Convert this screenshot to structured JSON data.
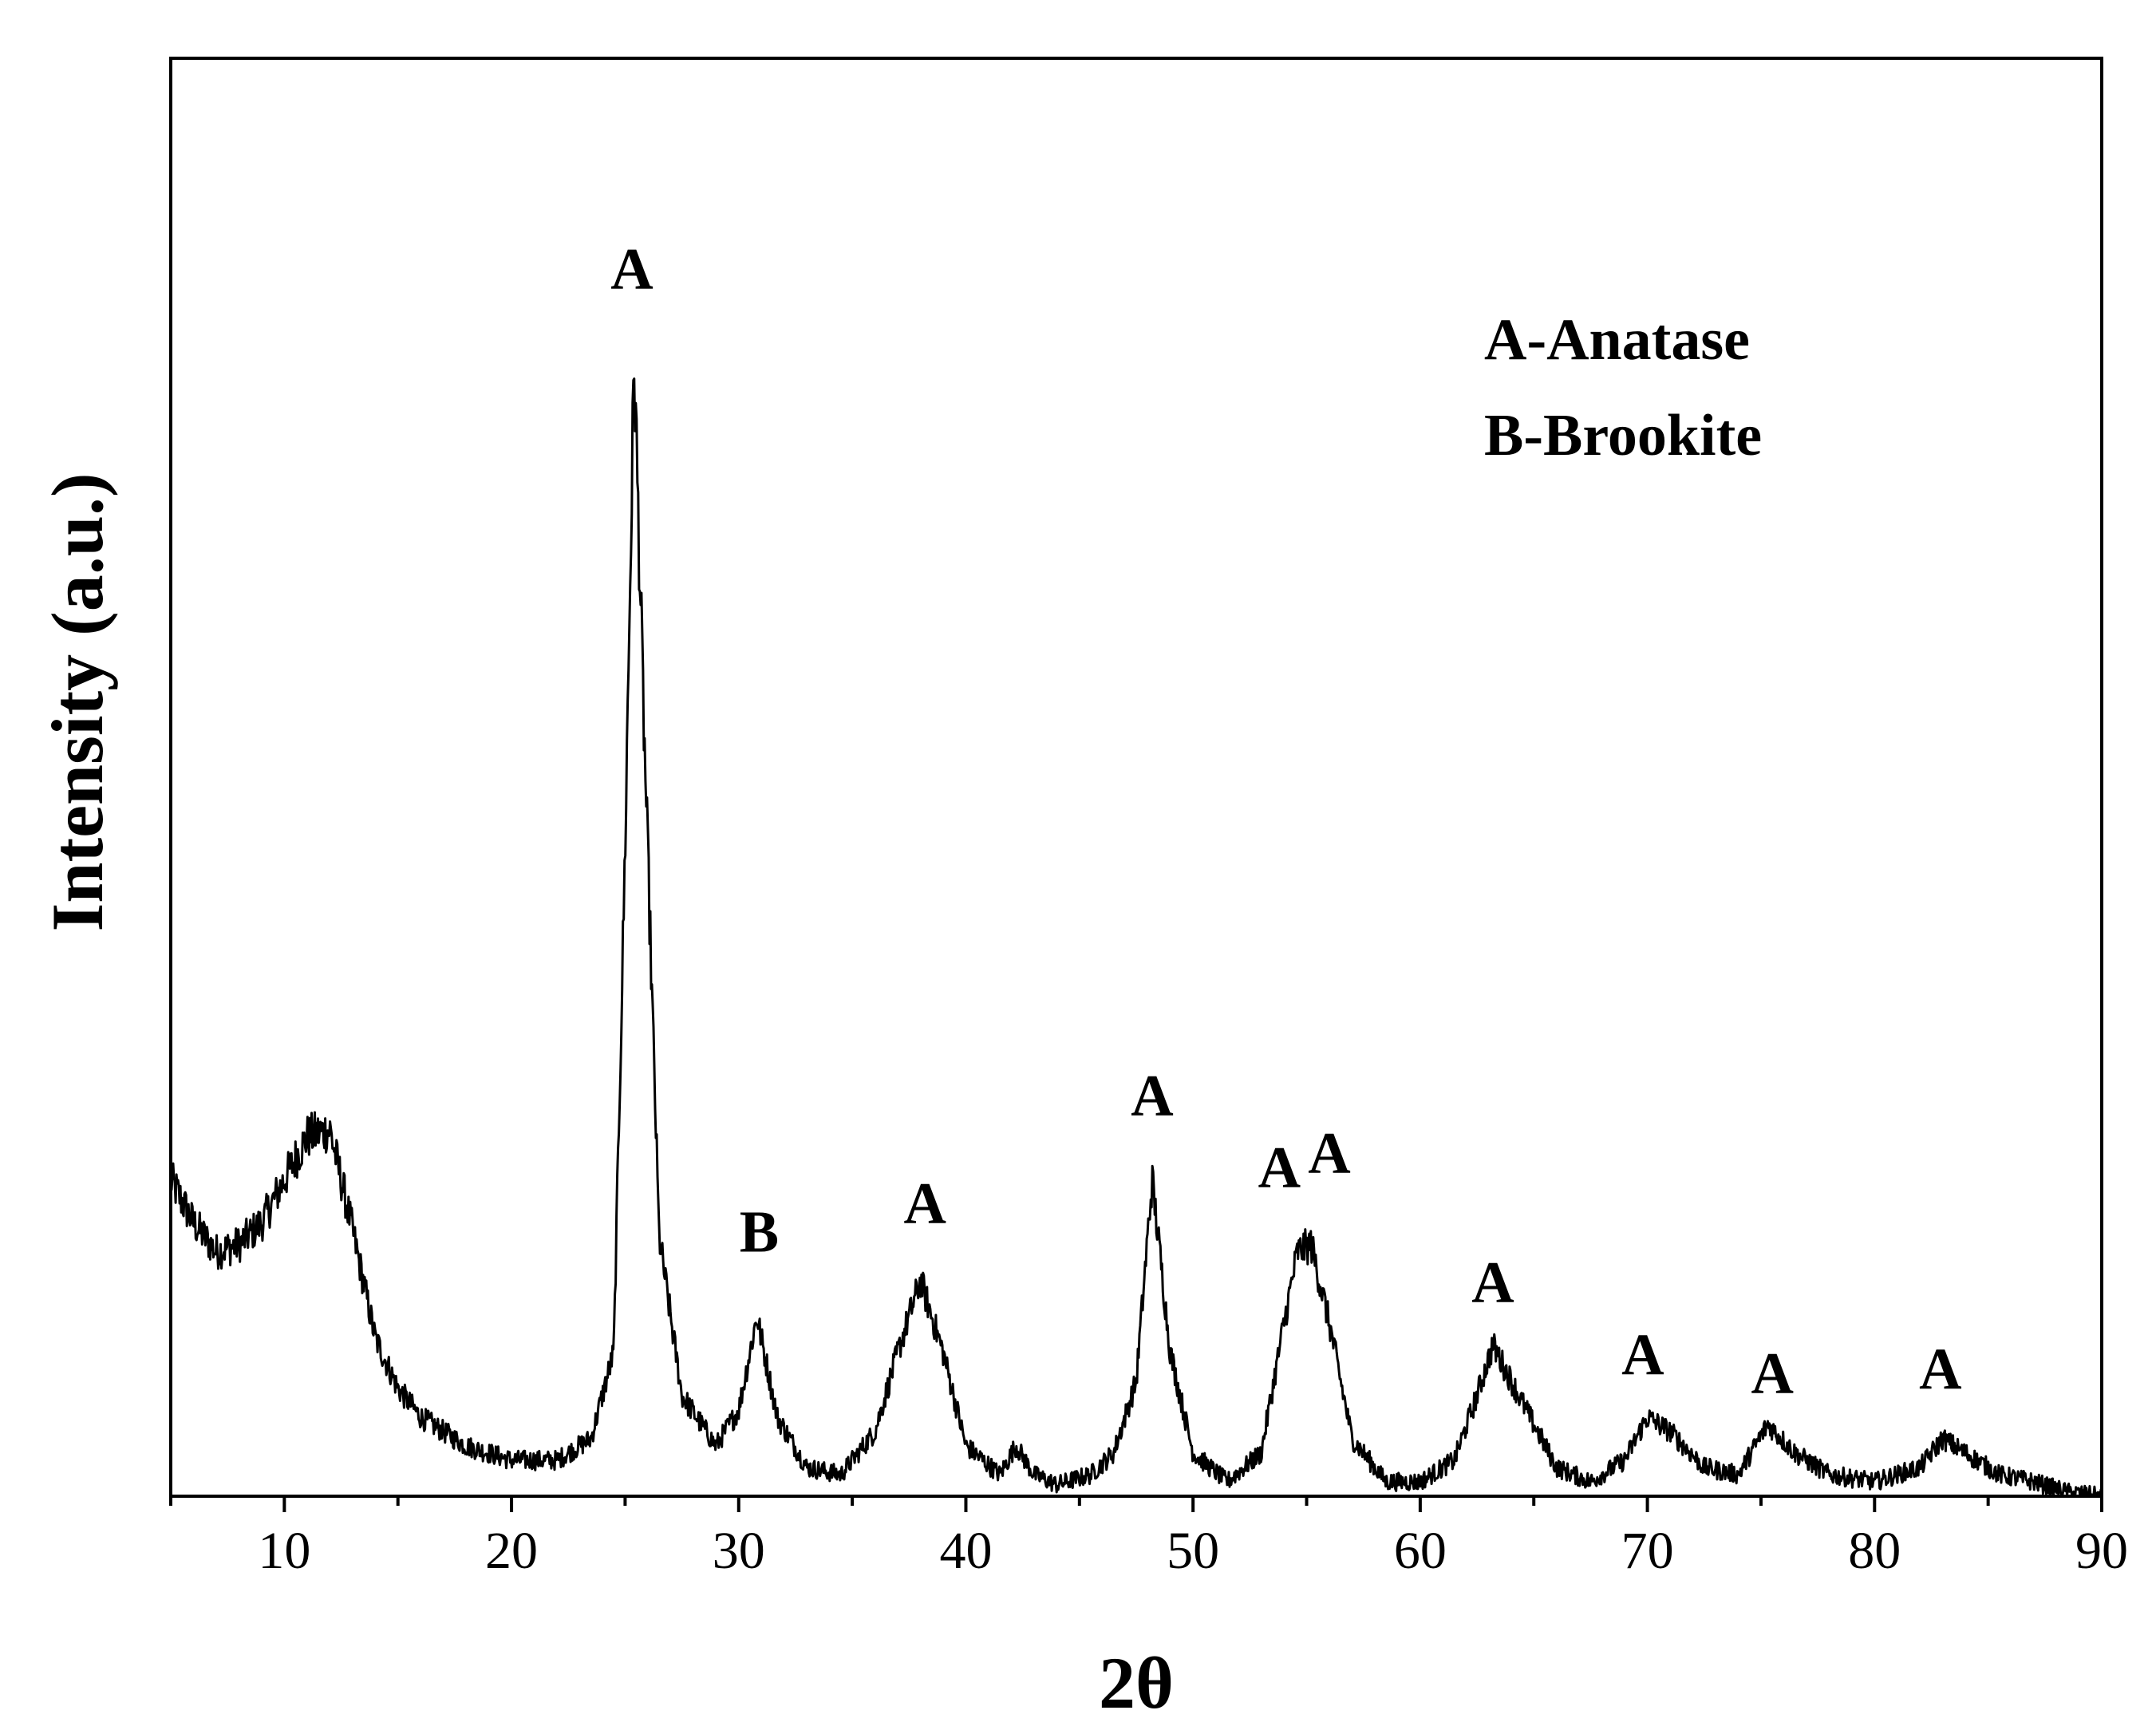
{
  "chart_data": {
    "type": "line",
    "title": "",
    "xlabel": "2θ",
    "ylabel": "Intensity (a.u.)",
    "xlim": [
      5,
      90
    ],
    "ylim": [
      0,
      100
    ],
    "xticks": [
      10,
      20,
      30,
      40,
      50,
      60,
      70,
      80,
      90
    ],
    "yticks": [],
    "grid": false,
    "legend": {
      "position": "top-right",
      "entries": [
        "A-Anatase",
        "B-Brookite"
      ]
    },
    "series": [
      {
        "color": "#000000",
        "x": [
          5,
          6,
          7,
          8,
          9,
          10,
          11,
          12,
          13,
          14,
          15,
          16,
          18,
          20,
          22,
          23.5,
          24.5,
          25,
          25.4,
          25.8,
          26.5,
          27.5,
          29,
          30,
          30.8,
          31.7,
          33,
          34.5,
          36,
          37,
          38,
          39,
          40,
          41.5,
          42.2,
          43,
          44,
          45.5,
          46.5,
          47.5,
          48.2,
          49,
          50,
          51.5,
          53,
          54,
          54.6,
          55.2,
          56,
          57,
          58.5,
          60,
          61.5,
          62.5,
          63.2,
          64.5,
          66,
          67.5,
          69,
          70,
          71,
          72.5,
          74,
          75.3,
          76.5,
          78,
          80,
          82,
          83,
          84,
          85.5,
          87,
          88.5,
          90
        ],
        "y": [
          22,
          19,
          17,
          17.5,
          19,
          22,
          25,
          25.5,
          18.5,
          11,
          7.5,
          5.5,
          3.5,
          2.5,
          2.5,
          4,
          10,
          45,
          79,
          55,
          18,
          7,
          3.5,
          6,
          12.5,
          5.5,
          2,
          1.5,
          4.5,
          10,
          15,
          10,
          3.5,
          1.5,
          3.5,
          1.5,
          0.8,
          1.5,
          3,
          8,
          22,
          10,
          3,
          1,
          3,
          12,
          17,
          17.5,
          12,
          4,
          1,
          1,
          2.5,
          7,
          10.5,
          6.5,
          2,
          1,
          2.5,
          5.5,
          4.5,
          2,
          1.5,
          5,
          3,
          1.5,
          1,
          2,
          4,
          3,
          1.5,
          1,
          0.3,
          0
        ]
      }
    ],
    "annotations": [
      {
        "text": "A",
        "x": 25.3,
        "y": 84
      },
      {
        "text": "B",
        "x": 30.9,
        "y": 17
      },
      {
        "text": "A",
        "x": 38.2,
        "y": 19
      },
      {
        "text": "A",
        "x": 48.2,
        "y": 26.5
      },
      {
        "text": "A",
        "x": 53.8,
        "y": 21.5
      },
      {
        "text": "A",
        "x": 56.0,
        "y": 22.5
      },
      {
        "text": "A",
        "x": 63.2,
        "y": 13.5
      },
      {
        "text": "A",
        "x": 69.8,
        "y": 8.5
      },
      {
        "text": "A",
        "x": 75.5,
        "y": 7.2
      },
      {
        "text": "A",
        "x": 82.9,
        "y": 7.5
      }
    ]
  }
}
